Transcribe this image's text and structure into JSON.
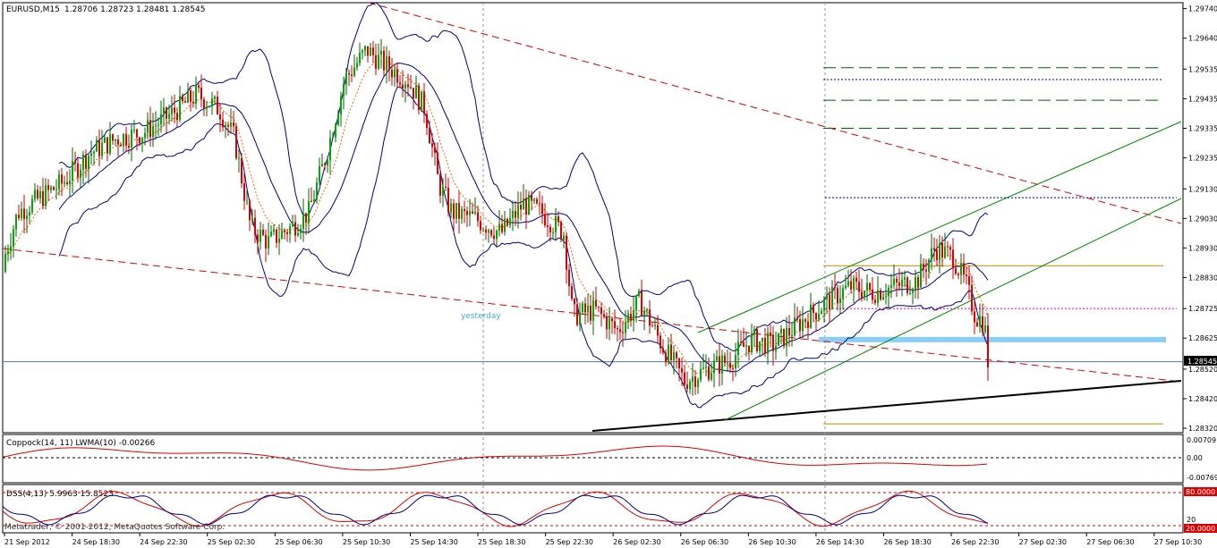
{
  "header": {
    "symbol": "EURUSD,M15",
    "ohlc": "1.28706 1.28723 1.28481 1.28545"
  },
  "chart_data": {
    "type": "candlestick",
    "price_axis_labels": [
      "1.29740",
      "1.29640",
      "1.29535",
      "1.29435",
      "1.29335",
      "1.29235",
      "1.29130",
      "1.29030",
      "1.28930",
      "1.28830",
      "1.28725",
      "1.28625",
      "1.28520",
      "1.28420",
      "1.28320"
    ],
    "price_axis_range": [
      1.28305,
      1.2976
    ],
    "current_price_label": "1.28545",
    "current_price": 1.28545,
    "time_axis_labels": [
      "21 Sep 2012",
      "24 Sep 18:30",
      "24 Sep 22:30",
      "25 Sep 02:30",
      "25 Sep 06:30",
      "25 Sep 10:30",
      "25 Sep 14:30",
      "25 Sep 18:30",
      "25 Sep 22:30",
      "26 Sep 02:30",
      "26 Sep 06:30",
      "26 Sep 10:30",
      "26 Sep 14:30",
      "26 Sep 18:30",
      "26 Sep 22:30",
      "27 Sep 02:30",
      "27 Sep 06:30",
      "27 Sep 10:30"
    ],
    "annotation": "yesterday",
    "price_path": [
      {
        "t": 0,
        "p": 1.2885
      },
      {
        "t": 20,
        "p": 1.2905
      },
      {
        "t": 45,
        "p": 1.291
      },
      {
        "t": 70,
        "p": 1.2915
      },
      {
        "t": 100,
        "p": 1.2925
      },
      {
        "t": 130,
        "p": 1.293
      },
      {
        "t": 160,
        "p": 1.2932
      },
      {
        "t": 190,
        "p": 1.2938
      },
      {
        "t": 220,
        "p": 1.2945
      },
      {
        "t": 245,
        "p": 1.294
      },
      {
        "t": 262,
        "p": 1.293
      },
      {
        "t": 280,
        "p": 1.29
      },
      {
        "t": 300,
        "p": 1.2895
      },
      {
        "t": 325,
        "p": 1.29
      },
      {
        "t": 345,
        "p": 1.2905
      },
      {
        "t": 365,
        "p": 1.2925
      },
      {
        "t": 385,
        "p": 1.295
      },
      {
        "t": 410,
        "p": 1.296
      },
      {
        "t": 430,
        "p": 1.2955
      },
      {
        "t": 455,
        "p": 1.295
      },
      {
        "t": 475,
        "p": 1.294
      },
      {
        "t": 490,
        "p": 1.2915
      },
      {
        "t": 505,
        "p": 1.2905
      },
      {
        "t": 530,
        "p": 1.2903
      },
      {
        "t": 560,
        "p": 1.2898
      },
      {
        "t": 585,
        "p": 1.2908
      },
      {
        "t": 605,
        "p": 1.2905
      },
      {
        "t": 630,
        "p": 1.2898
      },
      {
        "t": 640,
        "p": 1.287
      },
      {
        "t": 665,
        "p": 1.2872
      },
      {
        "t": 690,
        "p": 1.2865
      },
      {
        "t": 715,
        "p": 1.2875
      },
      {
        "t": 740,
        "p": 1.286
      },
      {
        "t": 765,
        "p": 1.2848
      },
      {
        "t": 790,
        "p": 1.2852
      },
      {
        "t": 815,
        "p": 1.2855
      },
      {
        "t": 840,
        "p": 1.2862
      },
      {
        "t": 865,
        "p": 1.286
      },
      {
        "t": 895,
        "p": 1.2868
      },
      {
        "t": 925,
        "p": 1.2875
      },
      {
        "t": 950,
        "p": 1.288
      },
      {
        "t": 975,
        "p": 1.2878
      },
      {
        "t": 1000,
        "p": 1.288
      },
      {
        "t": 1025,
        "p": 1.2882
      },
      {
        "t": 1045,
        "p": 1.2893
      },
      {
        "t": 1065,
        "p": 1.289
      },
      {
        "t": 1080,
        "p": 1.288
      },
      {
        "t": 1090,
        "p": 1.287
      },
      {
        "t": 1100,
        "p": 1.2868
      },
      {
        "t": 1104,
        "p": 1.28545
      }
    ],
    "horizontal_levels": [
      {
        "price": 1.2954,
        "color": "#006400",
        "style": "long-dash"
      },
      {
        "price": 1.295,
        "color": "#0000aa",
        "style": "dot"
      },
      {
        "price": 1.2943,
        "color": "#006400",
        "style": "long-dash"
      },
      {
        "price": 1.29335,
        "color": "#006400",
        "style": "long-dash"
      },
      {
        "price": 1.291,
        "color": "#0000aa",
        "style": "dot"
      },
      {
        "price": 1.2887,
        "color": "#cc8800",
        "style": "solid"
      },
      {
        "price": 1.28725,
        "color": "#cc00cc",
        "style": "dot"
      },
      {
        "price": 1.2862,
        "color": "#87cefa",
        "style": "thick"
      },
      {
        "price": 1.28545,
        "color": "#5577aa",
        "style": "solid"
      },
      {
        "price": 1.28335,
        "color": "#cc8800",
        "style": "solid"
      }
    ]
  },
  "indicators": {
    "coppock": {
      "title": "Coppock(14, 11) LWMA(10) -0.00266",
      "axis_labels": [
        "0.00709",
        "0.00",
        "-0.00769"
      ]
    },
    "dss": {
      "title": "DSS(4,13) 5.9963 15.8523",
      "axis_labels": [
        "80.0000",
        "20",
        "20.0000"
      ]
    }
  },
  "copyright": "Metatrader, © 2001-2012, MetaQuotes Software Corp."
}
